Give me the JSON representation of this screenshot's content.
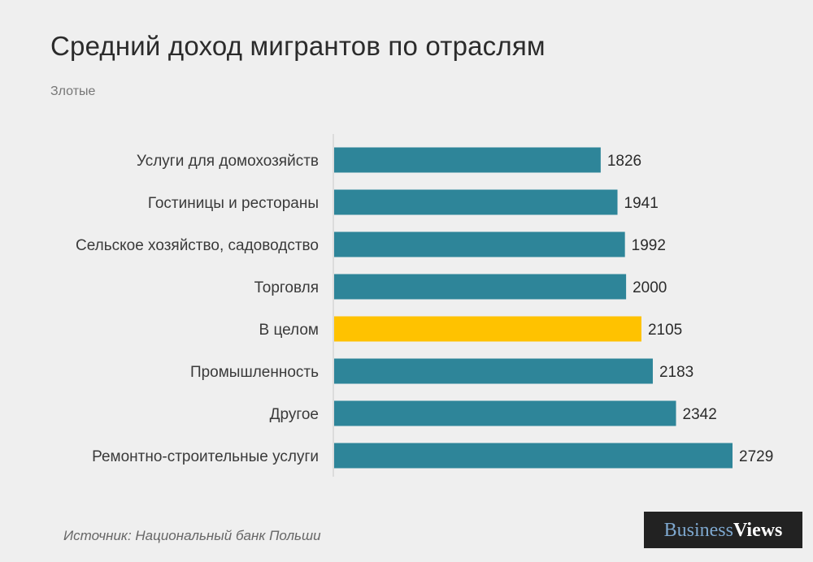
{
  "header": {
    "title": "Средний доход мигрантов по отраслям",
    "subtitle": "Злотые"
  },
  "footer": {
    "source": "Источник: Национальный банк Польши",
    "logo_part1": "Business",
    "logo_part2": "Views"
  },
  "colors": {
    "bar": "#2e8599",
    "highlight": "#ffc200",
    "axis": "#c8c8c8"
  },
  "chart_data": {
    "type": "bar",
    "orientation": "horizontal",
    "title": "Средний доход мигрантов по отраслям",
    "subtitle": "Злотые",
    "xlabel": "",
    "ylabel": "",
    "xlim": [
      0,
      2729
    ],
    "categories": [
      "Услуги для домохозяйств",
      "Гостиницы  и рестораны",
      "Сельское хозяйство, садоводство",
      "Торговля",
      "В целом",
      "Промышленность",
      "Другое",
      "Ремонтно-строительные  услуги"
    ],
    "values": [
      1826,
      1941,
      1992,
      2000,
      2105,
      2183,
      2342,
      2729
    ],
    "highlight_category": "В целом",
    "data_labels": true,
    "grid": false
  }
}
